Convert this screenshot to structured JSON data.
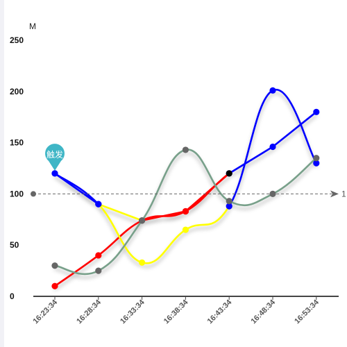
{
  "chart_data": {
    "type": "line",
    "x": [
      "16:23:34",
      "16:28:34",
      "16:33:34",
      "16:38:34",
      "16:43:34",
      "16:48:34",
      "16:53:34"
    ],
    "ylim": [
      0,
      250
    ],
    "yticks": [
      0,
      50,
      100,
      150,
      200,
      250
    ],
    "yunit": "M",
    "grid": false,
    "legend": "none",
    "series": [
      {
        "values": [
          120,
          90,
          74,
          83,
          120,
          146,
          180
        ],
        "color": "#0000ff",
        "smooth": false,
        "segment_colors": [
          "#0000ff",
          "#ffff00",
          "#ff0000",
          "#ff0000",
          "#0000ff",
          "#0000ff"
        ],
        "marker_colors": [
          "#0000ff",
          "#0000ff",
          "#666666",
          "#ff0000",
          "#0000ff",
          "#0000ff",
          "#0000ff"
        ]
      },
      {
        "values": [
          10,
          40,
          74,
          83,
          120,
          146,
          180
        ],
        "color": "#ff0000",
        "smooth": true,
        "visible_range": [
          0,
          4
        ],
        "marker_colors": [
          "#ff0000",
          "#ff0000",
          "#666666",
          "#ff0000"
        ]
      },
      {
        "values": [
          120,
          90,
          33,
          65,
          88,
          201,
          130
        ],
        "color": "#ffff00",
        "smooth": true,
        "segment_colors": [
          "#0000ff",
          "#ffff00",
          "#ffff00",
          "#ffff00",
          "#0000ff",
          "#0000ff"
        ],
        "marker_colors": [
          "#0000ff",
          "#0000ff",
          "#ffff00",
          "#ffff00",
          "#0000ff",
          "#0000ff",
          "#0000ff"
        ]
      },
      {
        "values": [
          30,
          25,
          74,
          143,
          93,
          100,
          135
        ],
        "color": "#78a08a",
        "smooth": true,
        "marker_colors": [
          "#666666",
          "#666666",
          "#666666",
          "#666666",
          "#666666",
          "#666666",
          "#666666"
        ]
      }
    ],
    "annotations": {
      "pin": {
        "label": "触发",
        "x_index": 0,
        "y": 120,
        "color": "#3fb6c6"
      },
      "reference_line": {
        "y": 100,
        "end_label": "1",
        "color": "#666666"
      }
    }
  }
}
